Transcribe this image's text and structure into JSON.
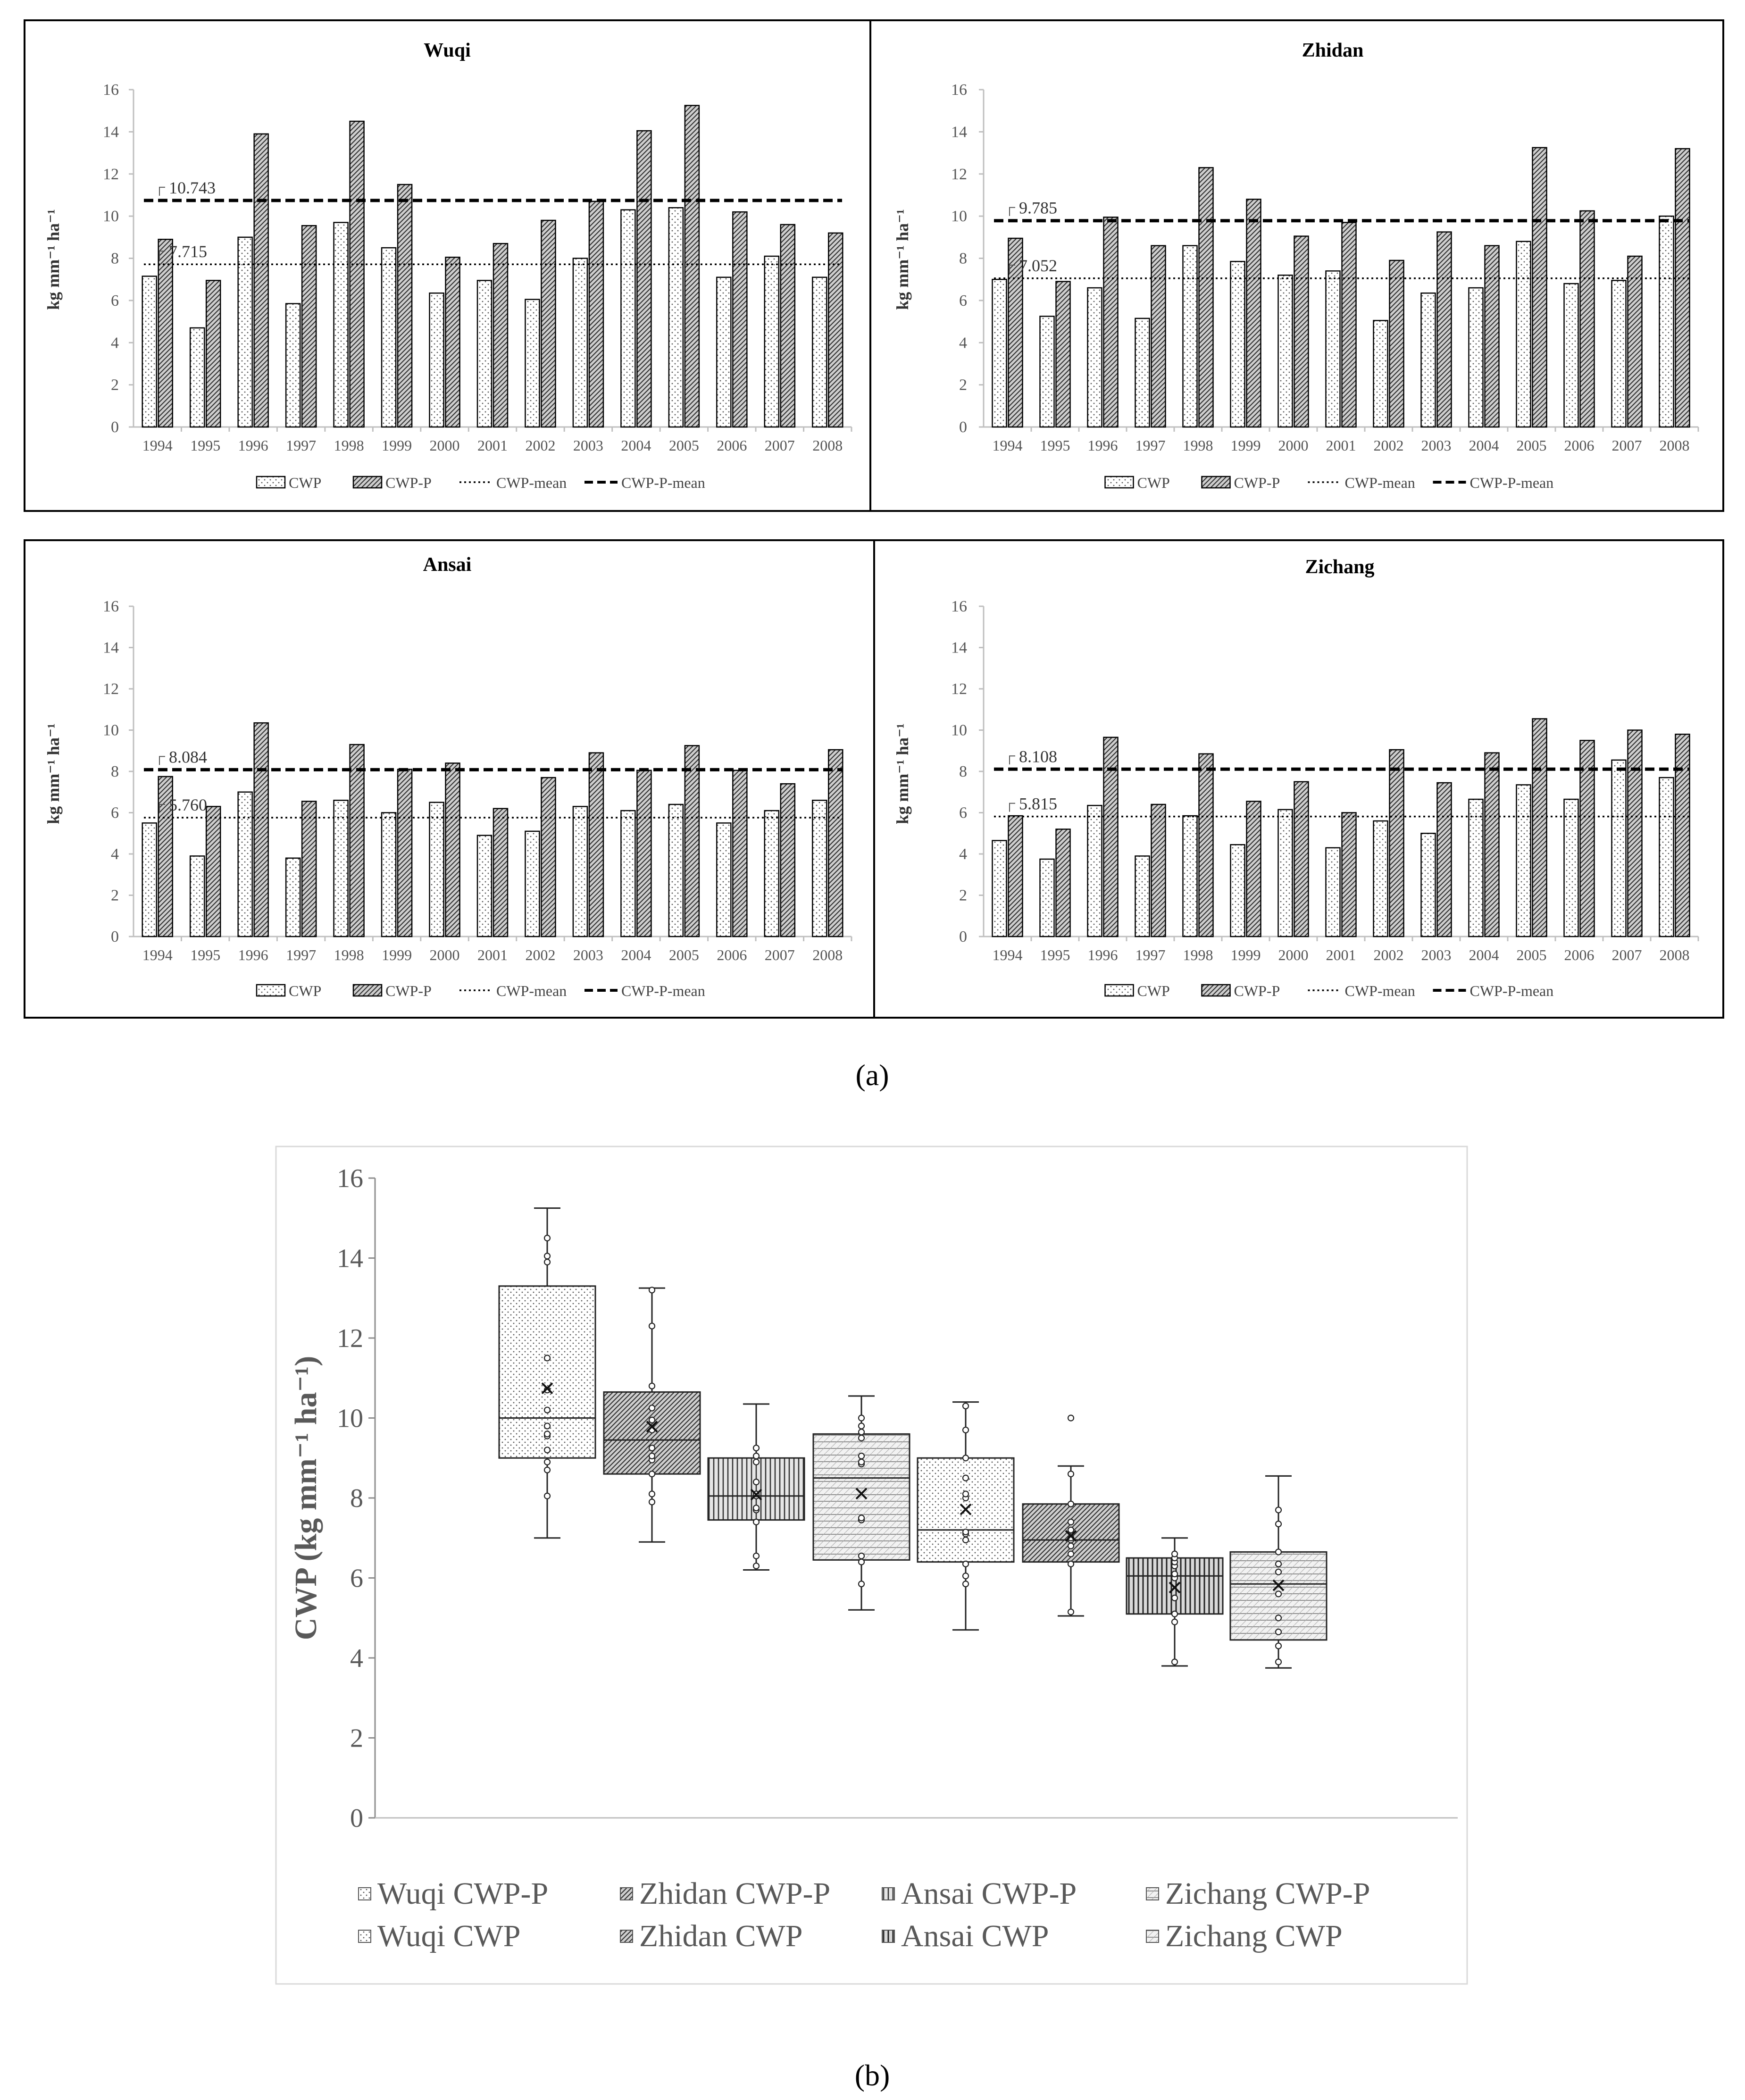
{
  "panel_a_label": "(a)",
  "panel_b_label": "(b)",
  "colors": {
    "axis": "#bfbfbf",
    "bar_stroke": "#000000",
    "text": "#555555"
  },
  "chart_data": [
    {
      "type": "bar",
      "title": "Wuqi",
      "ylabel": "kg mm⁻¹ ha⁻¹",
      "ylim": [
        0,
        16
      ],
      "yticks": [
        0,
        2,
        4,
        6,
        8,
        10,
        12,
        14,
        16
      ],
      "categories": [
        "1994",
        "1995",
        "1996",
        "1997",
        "1998",
        "1999",
        "2000",
        "2001",
        "2002",
        "2003",
        "2004",
        "2005",
        "2006",
        "2007",
        "2008"
      ],
      "series": [
        {
          "name": "CWP",
          "values": [
            7.15,
            4.7,
            9.0,
            5.85,
            9.7,
            8.5,
            6.35,
            6.95,
            6.05,
            8.0,
            10.3,
            10.4,
            7.1,
            8.1,
            7.1
          ]
        },
        {
          "name": "CWP-P",
          "values": [
            8.9,
            6.95,
            13.9,
            9.55,
            14.5,
            11.5,
            8.05,
            8.7,
            9.8,
            10.7,
            14.05,
            15.25,
            10.2,
            9.6,
            9.2
          ]
        }
      ],
      "mean_lines": [
        {
          "name": "CWP-mean",
          "value": 7.715,
          "label": "7.715"
        },
        {
          "name": "CWP-P-mean",
          "value": 10.743,
          "label": "10.743"
        }
      ],
      "legend": [
        "CWP",
        "CWP-P",
        "CWP-mean",
        "CWP-P-mean"
      ]
    },
    {
      "type": "bar",
      "title": "Zhidan",
      "ylabel": "kg mm⁻¹ ha⁻¹",
      "ylim": [
        0,
        16
      ],
      "yticks": [
        0,
        2,
        4,
        6,
        8,
        10,
        12,
        14,
        16
      ],
      "categories": [
        "1994",
        "1995",
        "1996",
        "1997",
        "1998",
        "1999",
        "2000",
        "2001",
        "2002",
        "2003",
        "2004",
        "2005",
        "2006",
        "2007",
        "2008"
      ],
      "series": [
        {
          "name": "CWP",
          "values": [
            7.0,
            5.25,
            6.6,
            5.15,
            8.6,
            7.85,
            7.2,
            7.4,
            5.05,
            6.35,
            6.6,
            8.8,
            6.8,
            6.95,
            10.0
          ]
        },
        {
          "name": "CWP-P",
          "values": [
            8.95,
            6.9,
            9.95,
            8.6,
            12.3,
            10.8,
            9.05,
            9.7,
            7.9,
            9.25,
            8.6,
            13.25,
            10.25,
            8.1,
            13.2
          ]
        }
      ],
      "mean_lines": [
        {
          "name": "CWP-mean",
          "value": 7.052,
          "label": "7.052"
        },
        {
          "name": "CWP-P-mean",
          "value": 9.785,
          "label": "9.785"
        }
      ],
      "legend": [
        "CWP",
        "CWP-P",
        "CWP-mean",
        "CWP-P-mean"
      ]
    },
    {
      "type": "bar",
      "title": "Ansai",
      "ylabel": "kg mm⁻¹ ha⁻¹",
      "ylim": [
        0,
        16
      ],
      "yticks": [
        0,
        2,
        4,
        6,
        8,
        10,
        12,
        14,
        16
      ],
      "categories": [
        "1994",
        "1995",
        "1996",
        "1997",
        "1998",
        "1999",
        "2000",
        "2001",
        "2002",
        "2003",
        "2004",
        "2005",
        "2006",
        "2007",
        "2008"
      ],
      "series": [
        {
          "name": "CWP",
          "values": [
            5.5,
            3.9,
            7.0,
            3.8,
            6.6,
            6.0,
            6.5,
            4.9,
            5.1,
            6.3,
            6.1,
            6.4,
            5.5,
            6.1,
            6.6
          ]
        },
        {
          "name": "CWP-P",
          "values": [
            7.75,
            6.3,
            10.35,
            6.55,
            9.3,
            8.1,
            8.4,
            6.2,
            7.7,
            8.9,
            8.05,
            9.25,
            8.05,
            7.4,
            9.05
          ]
        }
      ],
      "mean_lines": [
        {
          "name": "CWP-mean",
          "value": 5.76,
          "label": "5.760"
        },
        {
          "name": "CWP-P-mean",
          "value": 8.084,
          "label": "8.084"
        }
      ],
      "legend": [
        "CWP",
        "CWP-P",
        "CWP-mean",
        "CWP-P-mean"
      ]
    },
    {
      "type": "bar",
      "title": "Zichang",
      "ylabel": "kg mm⁻¹ ha⁻¹",
      "ylim": [
        0,
        16
      ],
      "yticks": [
        0,
        2,
        4,
        6,
        8,
        10,
        12,
        14,
        16
      ],
      "categories": [
        "1994",
        "1995",
        "1996",
        "1997",
        "1998",
        "1999",
        "2000",
        "2001",
        "2002",
        "2003",
        "2004",
        "2005",
        "2006",
        "2007",
        "2008"
      ],
      "series": [
        {
          "name": "CWP",
          "values": [
            4.65,
            3.75,
            6.35,
            3.9,
            5.85,
            4.45,
            6.15,
            4.3,
            5.6,
            5.0,
            6.65,
            7.35,
            6.65,
            8.55,
            7.7
          ]
        },
        {
          "name": "CWP-P",
          "values": [
            5.85,
            5.2,
            9.65,
            6.4,
            8.85,
            6.55,
            7.5,
            6.0,
            9.05,
            7.45,
            8.9,
            10.55,
            9.5,
            10.0,
            9.8
          ]
        }
      ],
      "mean_lines": [
        {
          "name": "CWP-mean",
          "value": 5.815,
          "label": "5.815"
        },
        {
          "name": "CWP-P-mean",
          "value": 8.108,
          "label": "8.108"
        }
      ],
      "legend": [
        "CWP",
        "CWP-P",
        "CWP-mean",
        "CWP-P-mean"
      ]
    },
    {
      "type": "box",
      "ylabel": "CWP (kg mm⁻¹ ha⁻¹)",
      "ylim": [
        0,
        16
      ],
      "yticks": [
        0,
        2,
        4,
        6,
        8,
        10,
        12,
        14,
        16
      ],
      "boxes": [
        {
          "name": "Wuqi CWP-P",
          "min": 7.0,
          "q1": 9.0,
          "median": 10.0,
          "q3": 13.3,
          "max": 15.25,
          "mean": 10.743,
          "points": [
            8.05,
            8.7,
            8.9,
            9.2,
            9.55,
            9.6,
            9.8,
            10.2,
            10.7,
            11.5,
            13.9,
            14.05,
            14.5
          ]
        },
        {
          "name": "Zhidan CWP-P",
          "min": 6.9,
          "q1": 8.6,
          "median": 9.45,
          "q3": 10.65,
          "max": 13.25,
          "mean": 9.785,
          "points": [
            7.9,
            8.1,
            8.6,
            8.95,
            9.05,
            9.25,
            9.7,
            9.95,
            10.25,
            10.8,
            12.3,
            13.2
          ]
        },
        {
          "name": "Ansai CWP-P",
          "min": 6.2,
          "q1": 7.45,
          "median": 8.05,
          "q3": 9.0,
          "max": 10.35,
          "mean": 8.084,
          "points": [
            6.3,
            6.55,
            7.4,
            7.7,
            7.75,
            8.05,
            8.1,
            8.4,
            8.9,
            9.05,
            9.25
          ]
        },
        {
          "name": "Zichang CWP-P",
          "min": 5.2,
          "q1": 6.45,
          "median": 8.5,
          "q3": 9.6,
          "max": 10.55,
          "mean": 8.108,
          "points": [
            5.85,
            6.4,
            6.55,
            7.45,
            7.5,
            8.85,
            8.9,
            9.05,
            9.5,
            9.65,
            9.8,
            10.0
          ]
        },
        {
          "name": "Wuqi CWP",
          "min": 4.7,
          "q1": 6.4,
          "median": 7.2,
          "q3": 9.0,
          "max": 10.4,
          "mean": 7.715,
          "points": [
            5.85,
            6.05,
            6.35,
            6.95,
            7.1,
            7.15,
            8.0,
            8.1,
            8.5,
            9.0,
            9.7,
            10.3
          ]
        },
        {
          "name": "Zhidan CWP",
          "min": 5.05,
          "q1": 6.4,
          "median": 6.95,
          "q3": 7.85,
          "max": 8.8,
          "mean": 7.052,
          "points": [
            5.15,
            6.35,
            6.6,
            6.8,
            6.95,
            7.0,
            7.2,
            7.4,
            7.85,
            8.6,
            10.0
          ]
        },
        {
          "name": "Ansai CWP",
          "min": 3.8,
          "q1": 5.1,
          "median": 6.05,
          "q3": 6.5,
          "max": 7.0,
          "mean": 5.76,
          "points": [
            3.9,
            4.9,
            5.1,
            5.5,
            6.0,
            6.1,
            6.3,
            6.4,
            6.5,
            6.6
          ]
        },
        {
          "name": "Zichang CWP",
          "min": 3.75,
          "q1": 4.45,
          "median": 5.85,
          "q3": 6.65,
          "max": 8.55,
          "mean": 5.815,
          "points": [
            3.9,
            4.3,
            4.65,
            5.0,
            5.6,
            6.15,
            6.35,
            6.65,
            7.35,
            7.7
          ]
        }
      ],
      "legend": [
        "Wuqi CWP-P",
        "Zhidan CWP-P",
        "Ansai CWP-P",
        "Zichang CWP-P",
        "Wuqi CWP",
        "Zhidan CWP",
        "Ansai CWP",
        "Zichang CWP"
      ]
    }
  ]
}
